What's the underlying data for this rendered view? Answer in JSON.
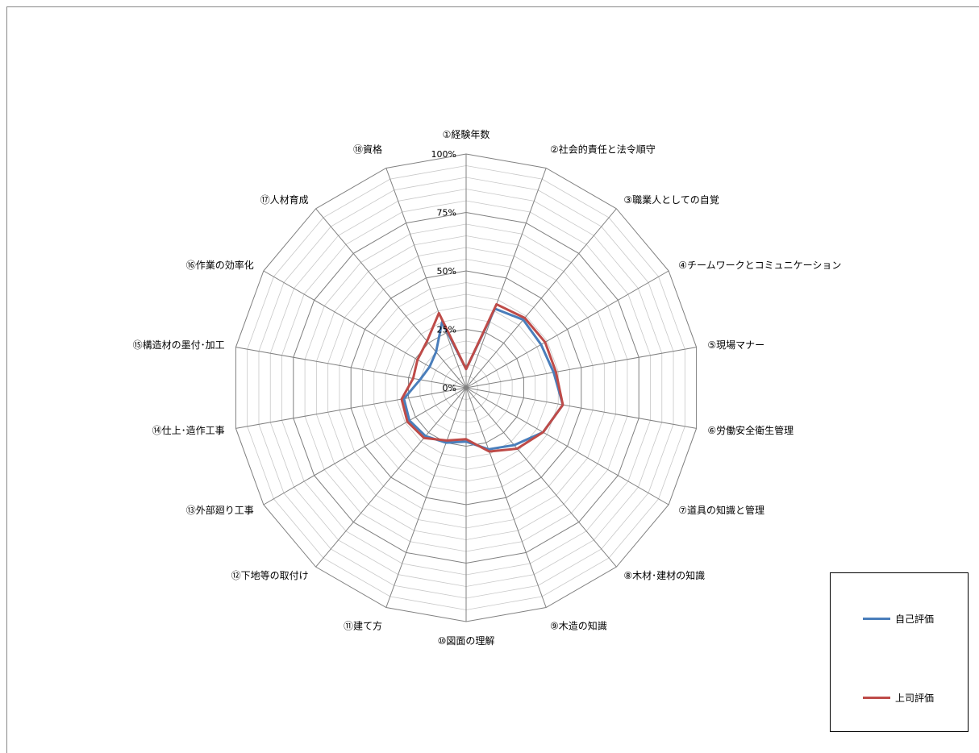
{
  "chart_data": {
    "type": "radar",
    "categories": [
      "①経験年数",
      "②社会的責任と法令順守",
      "③職業人としての自覚",
      "④チームワークとコミュニケーション",
      "⑤現場マナー",
      "⑥労働安全衛生管理",
      "⑦道具の知識と管理",
      "⑧木材･建材の知識",
      "⑨木造の知識",
      "⑩図面の理解",
      "⑪建て方",
      "⑫下地等の取付け",
      "⑬外部廻り工事",
      "⑭仕上･造作工事",
      "⑮構造材の墨付･加工",
      "⑯作業の効率化",
      "⑰人材育成",
      "⑱資格"
    ],
    "rlim": [
      0,
      100
    ],
    "ticks": [
      "0%",
      "25%",
      "50%",
      "75%",
      "100%"
    ],
    "grid": true,
    "legend": "bottom-right",
    "series": [
      {
        "name": "自己評価",
        "color": "#4A7EBB",
        "values": [
          8,
          36,
          38,
          37,
          38,
          42,
          38,
          32,
          28,
          23,
          25,
          27,
          28,
          27,
          20,
          18,
          20,
          30
        ]
      },
      {
        "name": "上司評価",
        "color": "#BE4B48",
        "values": [
          8,
          38,
          39,
          39,
          39,
          42,
          38,
          34,
          29,
          22,
          24,
          28,
          29,
          28,
          23,
          24,
          26,
          34
        ]
      }
    ]
  }
}
